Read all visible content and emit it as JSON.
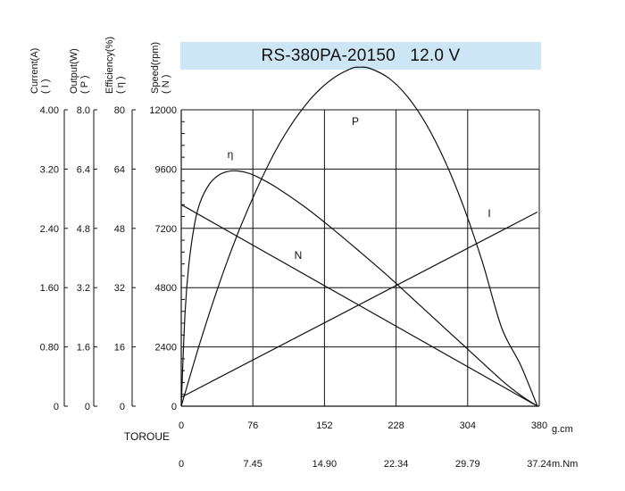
{
  "chart_data": {
    "type": "line",
    "title": "RS-380PA-20150   12.0 V",
    "colors": {
      "banner": "#cde6f5",
      "lines": "#111111",
      "grid": "#111111",
      "background": "#ffffff"
    },
    "grid": true,
    "xlabel": "TOROUE",
    "x_units": "g.cm",
    "x_secondary_units": "m.Nm",
    "xlim": [
      0,
      380
    ],
    "x_ticks": [
      "0",
      "76",
      "152",
      "228",
      "304",
      "380"
    ],
    "x_secondary_ticks": [
      "0",
      "7.45",
      "14.90",
      "22.34",
      "29.79",
      "37.24"
    ],
    "y_axes": [
      {
        "id": "current",
        "label": "Current(A)",
        "symbol": "( I )",
        "lim": [
          0,
          4
        ],
        "ticks": [
          "0",
          "0.80",
          "1.60",
          "2.40",
          "3.20",
          "4.00"
        ]
      },
      {
        "id": "output",
        "label": "Output(W)",
        "symbol": "( P )",
        "lim": [
          0,
          8
        ],
        "ticks": [
          "0",
          "1.6",
          "3.2",
          "4.8",
          "6.4",
          "8.0"
        ]
      },
      {
        "id": "efficiency",
        "label": "Efficiency(%)",
        "symbol": "( η )",
        "lim": [
          0,
          80
        ],
        "ticks": [
          "0",
          "16",
          "32",
          "48",
          "64",
          "80"
        ]
      },
      {
        "id": "speed",
        "label": "Speed(rpm)",
        "symbol": "( N )",
        "lim": [
          0,
          12000
        ],
        "ticks": [
          "0",
          "2400",
          "4800",
          "7200",
          "9600",
          "12000"
        ]
      }
    ],
    "series": [
      {
        "name": "N",
        "axis": "speed",
        "x": [
          0,
          378
        ],
        "y": [
          8160,
          0
        ]
      },
      {
        "name": "I",
        "axis": "current",
        "x": [
          0,
          378
        ],
        "y": [
          0.12,
          2.62
        ]
      },
      {
        "name": "P",
        "axis": "output",
        "x": [
          0,
          20,
          40,
          60,
          80,
          100,
          120,
          140,
          160,
          180,
          189,
          200,
          220,
          240,
          260,
          280,
          300,
          320,
          340,
          360,
          378
        ],
        "y": [
          0,
          1.72,
          3.28,
          4.66,
          5.85,
          6.89,
          7.72,
          8.37,
          8.83,
          9.11,
          9.15,
          9.12,
          8.86,
          8.36,
          7.61,
          6.61,
          5.36,
          3.86,
          2.12,
          1.12,
          0
        ]
      },
      {
        "name": "η",
        "axis": "efficiency",
        "x": [
          0,
          4,
          8,
          14,
          20,
          30,
          40,
          50,
          60,
          70,
          80,
          100,
          130,
          160,
          190,
          220,
          250,
          280,
          310,
          340,
          360,
          378
        ],
        "y": [
          0,
          25,
          38,
          49,
          55,
          60,
          62.4,
          63.4,
          63.5,
          63,
          62,
          59.2,
          54,
          48,
          41.6,
          35,
          28,
          21,
          14,
          7,
          3,
          0
        ]
      }
    ]
  }
}
